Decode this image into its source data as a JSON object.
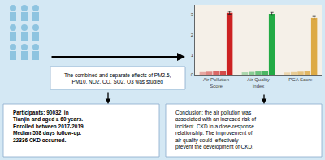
{
  "chart_data": {
    "type": "bar",
    "categories": [
      "Air Pollution Score",
      "Air Quality Index",
      "PCA Score"
    ],
    "colors": [
      "#cc2222",
      "#22aa44",
      "#ddaa44"
    ],
    "series": [
      {
        "values": [
          0.13,
          0.12,
          0.11
        ]
      },
      {
        "values": [
          0.15,
          0.14,
          0.13
        ]
      },
      {
        "values": [
          0.17,
          0.16,
          0.15
        ]
      },
      {
        "values": [
          0.19,
          0.18,
          0.17
        ]
      },
      {
        "values": [
          3.1,
          3.05,
          2.85
        ],
        "error": 0.07
      }
    ],
    "ylim": [
      0,
      3.5
    ],
    "yticks": [
      0,
      1,
      2,
      3
    ],
    "grid": false,
    "annotations": [
      "The combined and separate effects of PM2.5,\nPM10, NO2, CO, SO2, O3 was studied",
      "Participants: 90032  in\nTianjin and aged ≥ 60 years.\nEnrolled between 2017-2019.\nMedian 558 days follow-up.\n22336 CKD occurred.",
      "Conclusion: the air pollution was\nassociated with an incresed risk of\nincident  CKD in a dose-response\nrelationship. The improvement of\nair quality could  effectively\nprevent the development of CKD."
    ]
  }
}
